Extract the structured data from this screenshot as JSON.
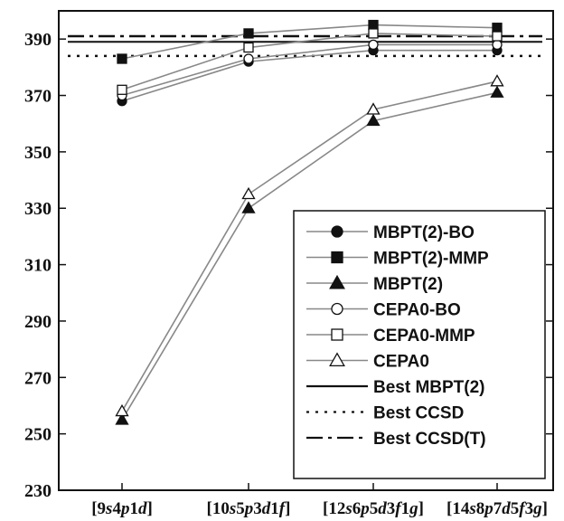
{
  "chart_data": {
    "type": "line",
    "title": "",
    "xlabel": "",
    "ylabel": "",
    "categories": [
      "[9s4p1d]",
      "[10s5p3d1f]",
      "[12s6p5d3f1g]",
      "[14s8p7d5f3g]"
    ],
    "category_parts": [
      [
        {
          "t": "[9"
        },
        {
          "t": "s",
          "i": true
        },
        {
          "t": "4"
        },
        {
          "t": "p",
          "i": true
        },
        {
          "t": "1"
        },
        {
          "t": "d",
          "i": true
        },
        {
          "t": "]"
        }
      ],
      [
        {
          "t": "[10"
        },
        {
          "t": "s",
          "i": true
        },
        {
          "t": "5"
        },
        {
          "t": "p",
          "i": true
        },
        {
          "t": "3"
        },
        {
          "t": "d",
          "i": true
        },
        {
          "t": "1"
        },
        {
          "t": "f",
          "i": true
        },
        {
          "t": "]"
        }
      ],
      [
        {
          "t": "[12"
        },
        {
          "t": "s",
          "i": true
        },
        {
          "t": "6"
        },
        {
          "t": "p",
          "i": true
        },
        {
          "t": "5"
        },
        {
          "t": "d",
          "i": true
        },
        {
          "t": "3"
        },
        {
          "t": "f",
          "i": true
        },
        {
          "t": "1"
        },
        {
          "t": "g",
          "i": true
        },
        {
          "t": "]"
        }
      ],
      [
        {
          "t": "[14"
        },
        {
          "t": "s",
          "i": true
        },
        {
          "t": "8"
        },
        {
          "t": "p",
          "i": true
        },
        {
          "t": "7"
        },
        {
          "t": "d",
          "i": true
        },
        {
          "t": "5"
        },
        {
          "t": "f",
          "i": true
        },
        {
          "t": "3"
        },
        {
          "t": "g",
          "i": true
        },
        {
          "t": "]"
        }
      ]
    ],
    "ylim": [
      230,
      400
    ],
    "yticks": [
      230,
      250,
      270,
      290,
      310,
      330,
      350,
      370,
      390
    ],
    "grid": false,
    "legend_position": "bottom-right",
    "series": [
      {
        "name": "MBPT(2)-BO",
        "marker": "circle",
        "filled": true,
        "values": [
          368,
          382,
          386,
          386
        ]
      },
      {
        "name": "MBPT(2)-MMP",
        "marker": "square",
        "filled": true,
        "values": [
          383,
          392,
          395,
          394
        ]
      },
      {
        "name": "MBPT(2)",
        "marker": "triangle",
        "filled": true,
        "values": [
          255,
          330,
          361,
          371
        ]
      },
      {
        "name": "CEPA0-BO",
        "marker": "circle",
        "filled": false,
        "values": [
          370,
          383,
          388,
          388
        ]
      },
      {
        "name": "CEPA0-MMP",
        "marker": "square",
        "filled": false,
        "values": [
          372,
          387,
          392,
          391
        ]
      },
      {
        "name": "CEPA0",
        "marker": "triangle",
        "filled": false,
        "values": [
          258,
          335,
          365,
          375
        ]
      }
    ],
    "reference_lines": [
      {
        "name": "Best MBPT(2)",
        "style": "solid",
        "value": 389
      },
      {
        "name": "Best CCSD",
        "style": "dotted",
        "value": 384
      },
      {
        "name": "Best CCSD(T)",
        "style": "dashdot",
        "value": 391
      }
    ],
    "colors": {
      "line": "#888888",
      "marker": "#111111",
      "axis": "#111111"
    }
  }
}
